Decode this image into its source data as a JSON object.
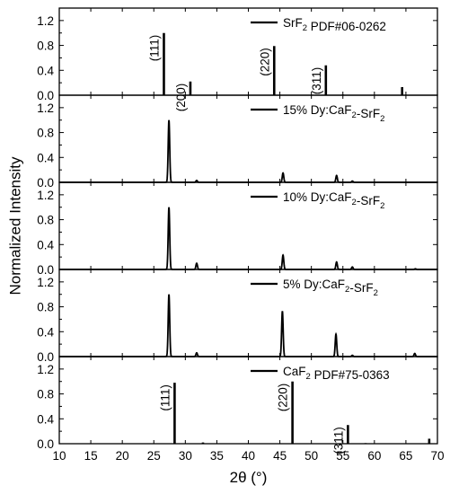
{
  "chart_data": {
    "type": "line",
    "x_axis": {
      "label": "2θ (°)",
      "ticks": [
        10,
        15,
        20,
        25,
        30,
        35,
        40,
        45,
        50,
        55,
        60,
        65,
        70
      ],
      "xlim": [
        10,
        70
      ]
    },
    "y_axis": {
      "label": "Normalized Intensity",
      "ticks": [
        0.0,
        0.4,
        0.8,
        1.2
      ],
      "ylim": [
        0,
        1.4
      ]
    },
    "panels": [
      {
        "legend": "SrF₂ PDF#06-0262",
        "style": "sticks",
        "peaks": [
          {
            "x": 26.6,
            "y": 1.0
          },
          {
            "x": 30.8,
            "y": 0.22
          },
          {
            "x": 44.1,
            "y": 0.79
          },
          {
            "x": 52.3,
            "y": 0.48
          },
          {
            "x": 55.0,
            "y": 0.01
          },
          {
            "x": 64.4,
            "y": 0.13
          }
        ],
        "annotations": [
          {
            "text": "(111)",
            "x": 26.6
          },
          {
            "text": "(200)",
            "x": 30.8
          },
          {
            "text": "(220)",
            "x": 44.1
          },
          {
            "text": "(311)",
            "x": 52.3
          }
        ]
      },
      {
        "legend": "15% Dy:CaF₂-SrF₂",
        "style": "profile",
        "peaks": [
          {
            "x": 27.4,
            "y": 1.0
          },
          {
            "x": 31.8,
            "y": 0.03
          },
          {
            "x": 45.5,
            "y": 0.15
          },
          {
            "x": 54.0,
            "y": 0.11
          },
          {
            "x": 56.5,
            "y": 0.02
          }
        ]
      },
      {
        "legend": "10% Dy:CaF₂-SrF₂",
        "style": "profile",
        "peaks": [
          {
            "x": 27.4,
            "y": 1.0
          },
          {
            "x": 31.8,
            "y": 0.1
          },
          {
            "x": 45.5,
            "y": 0.23
          },
          {
            "x": 54.0,
            "y": 0.12
          },
          {
            "x": 56.5,
            "y": 0.04
          },
          {
            "x": 66.5,
            "y": 0.01
          }
        ]
      },
      {
        "legend": "5% Dy:CaF₂-SrF₂",
        "style": "profile",
        "peaks": [
          {
            "x": 27.4,
            "y": 1.0
          },
          {
            "x": 31.8,
            "y": 0.06
          },
          {
            "x": 45.4,
            "y": 0.73
          },
          {
            "x": 53.9,
            "y": 0.36
          },
          {
            "x": 56.5,
            "y": 0.02
          },
          {
            "x": 66.4,
            "y": 0.05
          }
        ]
      },
      {
        "legend": "CaF₂ PDF#75-0363",
        "style": "sticks",
        "peaks": [
          {
            "x": 28.3,
            "y": 0.98
          },
          {
            "x": 32.8,
            "y": 0.02
          },
          {
            "x": 47.0,
            "y": 1.0
          },
          {
            "x": 55.8,
            "y": 0.3
          },
          {
            "x": 58.6,
            "y": 0.01
          },
          {
            "x": 68.7,
            "y": 0.08
          }
        ],
        "annotations": [
          {
            "text": "(111)",
            "x": 28.3
          },
          {
            "text": "(220)",
            "x": 47.0
          },
          {
            "text": "(311)",
            "x": 55.8
          }
        ]
      }
    ]
  }
}
